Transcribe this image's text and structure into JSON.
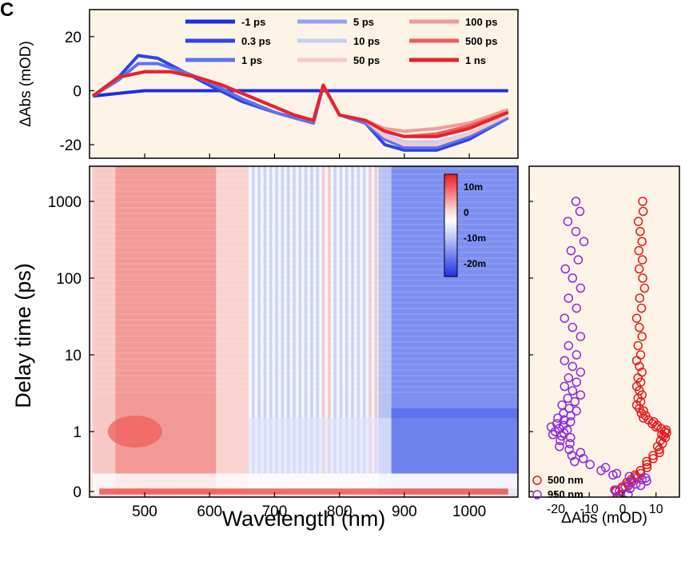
{
  "panel_label": "C",
  "colors": {
    "panel_background": "#fdf3e6",
    "positive": "#e8232b",
    "negative": "#1f3fe0",
    "probe_500": "#e21b1b",
    "probe_950": "#8a2be2"
  },
  "chart_data": [
    {
      "id": "spectra",
      "type": "line",
      "title": "",
      "xlabel": "",
      "ylabel": "ΔAbs (mOD)",
      "xlim": [
        415,
        1075
      ],
      "ylim": [
        -25,
        30
      ],
      "yticks": [
        "20",
        "0",
        "-20"
      ],
      "ytick_values": [
        20,
        0,
        -20
      ],
      "grid": false,
      "legend_position": "top-right",
      "series": [
        {
          "name": "-1 ps",
          "color": "#1a2fe6",
          "x": [
            420,
            460,
            500,
            550,
            600,
            650,
            700,
            750,
            800,
            850,
            880,
            900,
            950,
            1000,
            1060
          ],
          "y": [
            -2,
            -1,
            0,
            0,
            0,
            0,
            0,
            0,
            0,
            0,
            0,
            0,
            0,
            0,
            0
          ]
        },
        {
          "name": "0.3 ps",
          "color": "#2b45ea",
          "x": [
            420,
            460,
            490,
            520,
            560,
            600,
            650,
            700,
            730,
            760,
            775,
            800,
            840,
            870,
            900,
            950,
            1000,
            1060
          ],
          "y": [
            -2,
            5,
            13,
            12,
            7,
            2,
            -4,
            -8,
            -10,
            -12,
            2,
            -9,
            -12,
            -20,
            -22,
            -22,
            -18,
            -10
          ]
        },
        {
          "name": "1 ps",
          "color": "#5c73ef",
          "x": [
            420,
            460,
            490,
            520,
            560,
            600,
            650,
            700,
            730,
            760,
            775,
            800,
            840,
            870,
            900,
            950,
            1000,
            1060
          ],
          "y": [
            -2,
            4,
            10,
            10,
            7,
            3,
            -3,
            -8,
            -10,
            -12,
            2,
            -9,
            -12,
            -18,
            -21,
            -21,
            -17,
            -10
          ]
        },
        {
          "name": "5 ps",
          "color": "#93a2f3",
          "x": [
            420,
            460,
            500,
            540,
            580,
            620,
            660,
            700,
            730,
            760,
            775,
            800,
            840,
            870,
            900,
            950,
            1000,
            1060
          ],
          "y": [
            -2,
            5,
            7,
            7,
            5,
            2,
            -2,
            -6,
            -9,
            -11,
            2,
            -9,
            -11,
            -16,
            -19,
            -19,
            -16,
            -9
          ]
        },
        {
          "name": "10 ps",
          "color": "#c6cef8",
          "x": [
            420,
            460,
            500,
            540,
            580,
            620,
            660,
            700,
            730,
            760,
            775,
            800,
            840,
            870,
            900,
            950,
            1000,
            1060
          ],
          "y": [
            -2,
            5,
            7,
            7,
            5,
            2,
            -2,
            -6,
            -9,
            -11,
            2,
            -9,
            -11,
            -16,
            -19,
            -19,
            -16,
            -9
          ]
        },
        {
          "name": "50 ps",
          "color": "#f6c9c8",
          "x": [
            420,
            460,
            500,
            540,
            580,
            620,
            660,
            700,
            730,
            760,
            775,
            800,
            840,
            870,
            900,
            950,
            1000,
            1060
          ],
          "y": [
            -2,
            5,
            7,
            7,
            5,
            2,
            -2,
            -6,
            -9,
            -11,
            2,
            -9,
            -11,
            -17,
            -20,
            -20,
            -16,
            -9
          ]
        },
        {
          "name": "100 ps",
          "color": "#f09a98",
          "x": [
            420,
            460,
            500,
            540,
            580,
            620,
            660,
            700,
            730,
            760,
            775,
            800,
            840,
            870,
            900,
            950,
            1000,
            1060
          ],
          "y": [
            -2,
            5,
            7,
            7,
            5,
            2,
            -2,
            -6,
            -9,
            -11,
            2,
            -9,
            -11,
            -14,
            -15,
            -14,
            -12,
            -7
          ]
        },
        {
          "name": "500 ps",
          "color": "#ec5d5c",
          "x": [
            420,
            460,
            500,
            540,
            580,
            620,
            660,
            700,
            730,
            760,
            775,
            800,
            840,
            870,
            900,
            950,
            1000,
            1060
          ],
          "y": [
            -2,
            5,
            7,
            7,
            5,
            2,
            -2,
            -6,
            -9,
            -11,
            2,
            -9,
            -11,
            -15,
            -17,
            -16,
            -13,
            -8
          ]
        },
        {
          "name": "1 ns",
          "color": "#e8232b",
          "x": [
            420,
            460,
            500,
            540,
            580,
            620,
            660,
            700,
            730,
            760,
            775,
            800,
            840,
            870,
            900,
            950,
            1000,
            1060
          ],
          "y": [
            -2,
            5,
            7,
            7,
            5,
            2,
            -2,
            -6,
            -9,
            -11,
            2,
            -9,
            -11,
            -15,
            -17,
            -17,
            -14,
            -8
          ]
        }
      ],
      "legend": [
        "-1 ps",
        "0.3 ps",
        "1 ps",
        "5 ps",
        "10 ps",
        "50 ps",
        "100 ps",
        "500 ps",
        "1 ns"
      ]
    },
    {
      "id": "map",
      "type": "heatmap",
      "title": "",
      "xlabel": "Wavelength (nm)",
      "ylabel": "Delay time (ps)",
      "xlim": [
        415,
        1075
      ],
      "xticks": [
        "500",
        "600",
        "700",
        "800",
        "900",
        "1000"
      ],
      "xtick_values": [
        500,
        600,
        700,
        800,
        900,
        1000
      ],
      "yscale": "linear below 1 ps, log above 1 ps",
      "yticks": [
        "1000",
        "100",
        "10",
        "1",
        "0"
      ],
      "ytick_values": [
        1000,
        100,
        10,
        1,
        0
      ],
      "colorbar": {
        "labels": [
          "10m",
          "0",
          "-10m",
          "-20m"
        ],
        "values": [
          10,
          0,
          -10,
          -20
        ],
        "range": [
          -25,
          15
        ],
        "position": "top-right"
      },
      "regions": [
        {
          "name": "positive band",
          "x_range": [
            430,
            650
          ],
          "sign": "positive"
        },
        {
          "name": "oscillating region",
          "x_range": [
            660,
            860
          ],
          "sign": "mixed"
        },
        {
          "name": "negative band",
          "x_range": [
            860,
            1075
          ],
          "sign": "negative"
        },
        {
          "name": "coherent artifact",
          "delay_ps": 0,
          "sign": "positive"
        }
      ]
    },
    {
      "id": "kinetics",
      "type": "scatter",
      "title": "",
      "xlabel": "ΔAbs (mOD)",
      "ylabel": "",
      "xlim": [
        -28,
        17
      ],
      "xticks": [
        "-20",
        "-10",
        "0",
        "10"
      ],
      "xtick_values": [
        -20,
        -10,
        0,
        10
      ],
      "yscale": "same as delay axis",
      "legend_position": "bottom-right",
      "legend": [
        "500 nm",
        "950 nm"
      ],
      "series": [
        {
          "name": "500 nm",
          "color": "#e21b1b",
          "delay_ps": [
            -0.2,
            0,
            0.1,
            0.2,
            0.3,
            0.5,
            0.7,
            0.9,
            1,
            1.2,
            1.5,
            2,
            3,
            5,
            10,
            30,
            100,
            300,
            1000
          ],
          "values": [
            0,
            -2,
            1,
            3,
            5,
            8,
            11,
            12,
            13,
            10,
            7,
            5,
            5,
            5,
            5,
            5,
            6,
            5,
            6
          ]
        },
        {
          "name": "950 nm",
          "color": "#8a2be2",
          "delay_ps": [
            -0.2,
            0,
            0.1,
            0.2,
            0.3,
            0.5,
            0.7,
            0.9,
            1,
            1.2,
            1.5,
            2,
            3,
            5,
            10,
            30,
            100,
            300,
            1000
          ],
          "values": [
            0,
            -1,
            3,
            7,
            -3,
            -12,
            -16,
            -18,
            -19,
            -19,
            -17,
            -16,
            -15,
            -15,
            -15,
            -15,
            -15,
            -14,
            -14
          ]
        }
      ]
    }
  ]
}
